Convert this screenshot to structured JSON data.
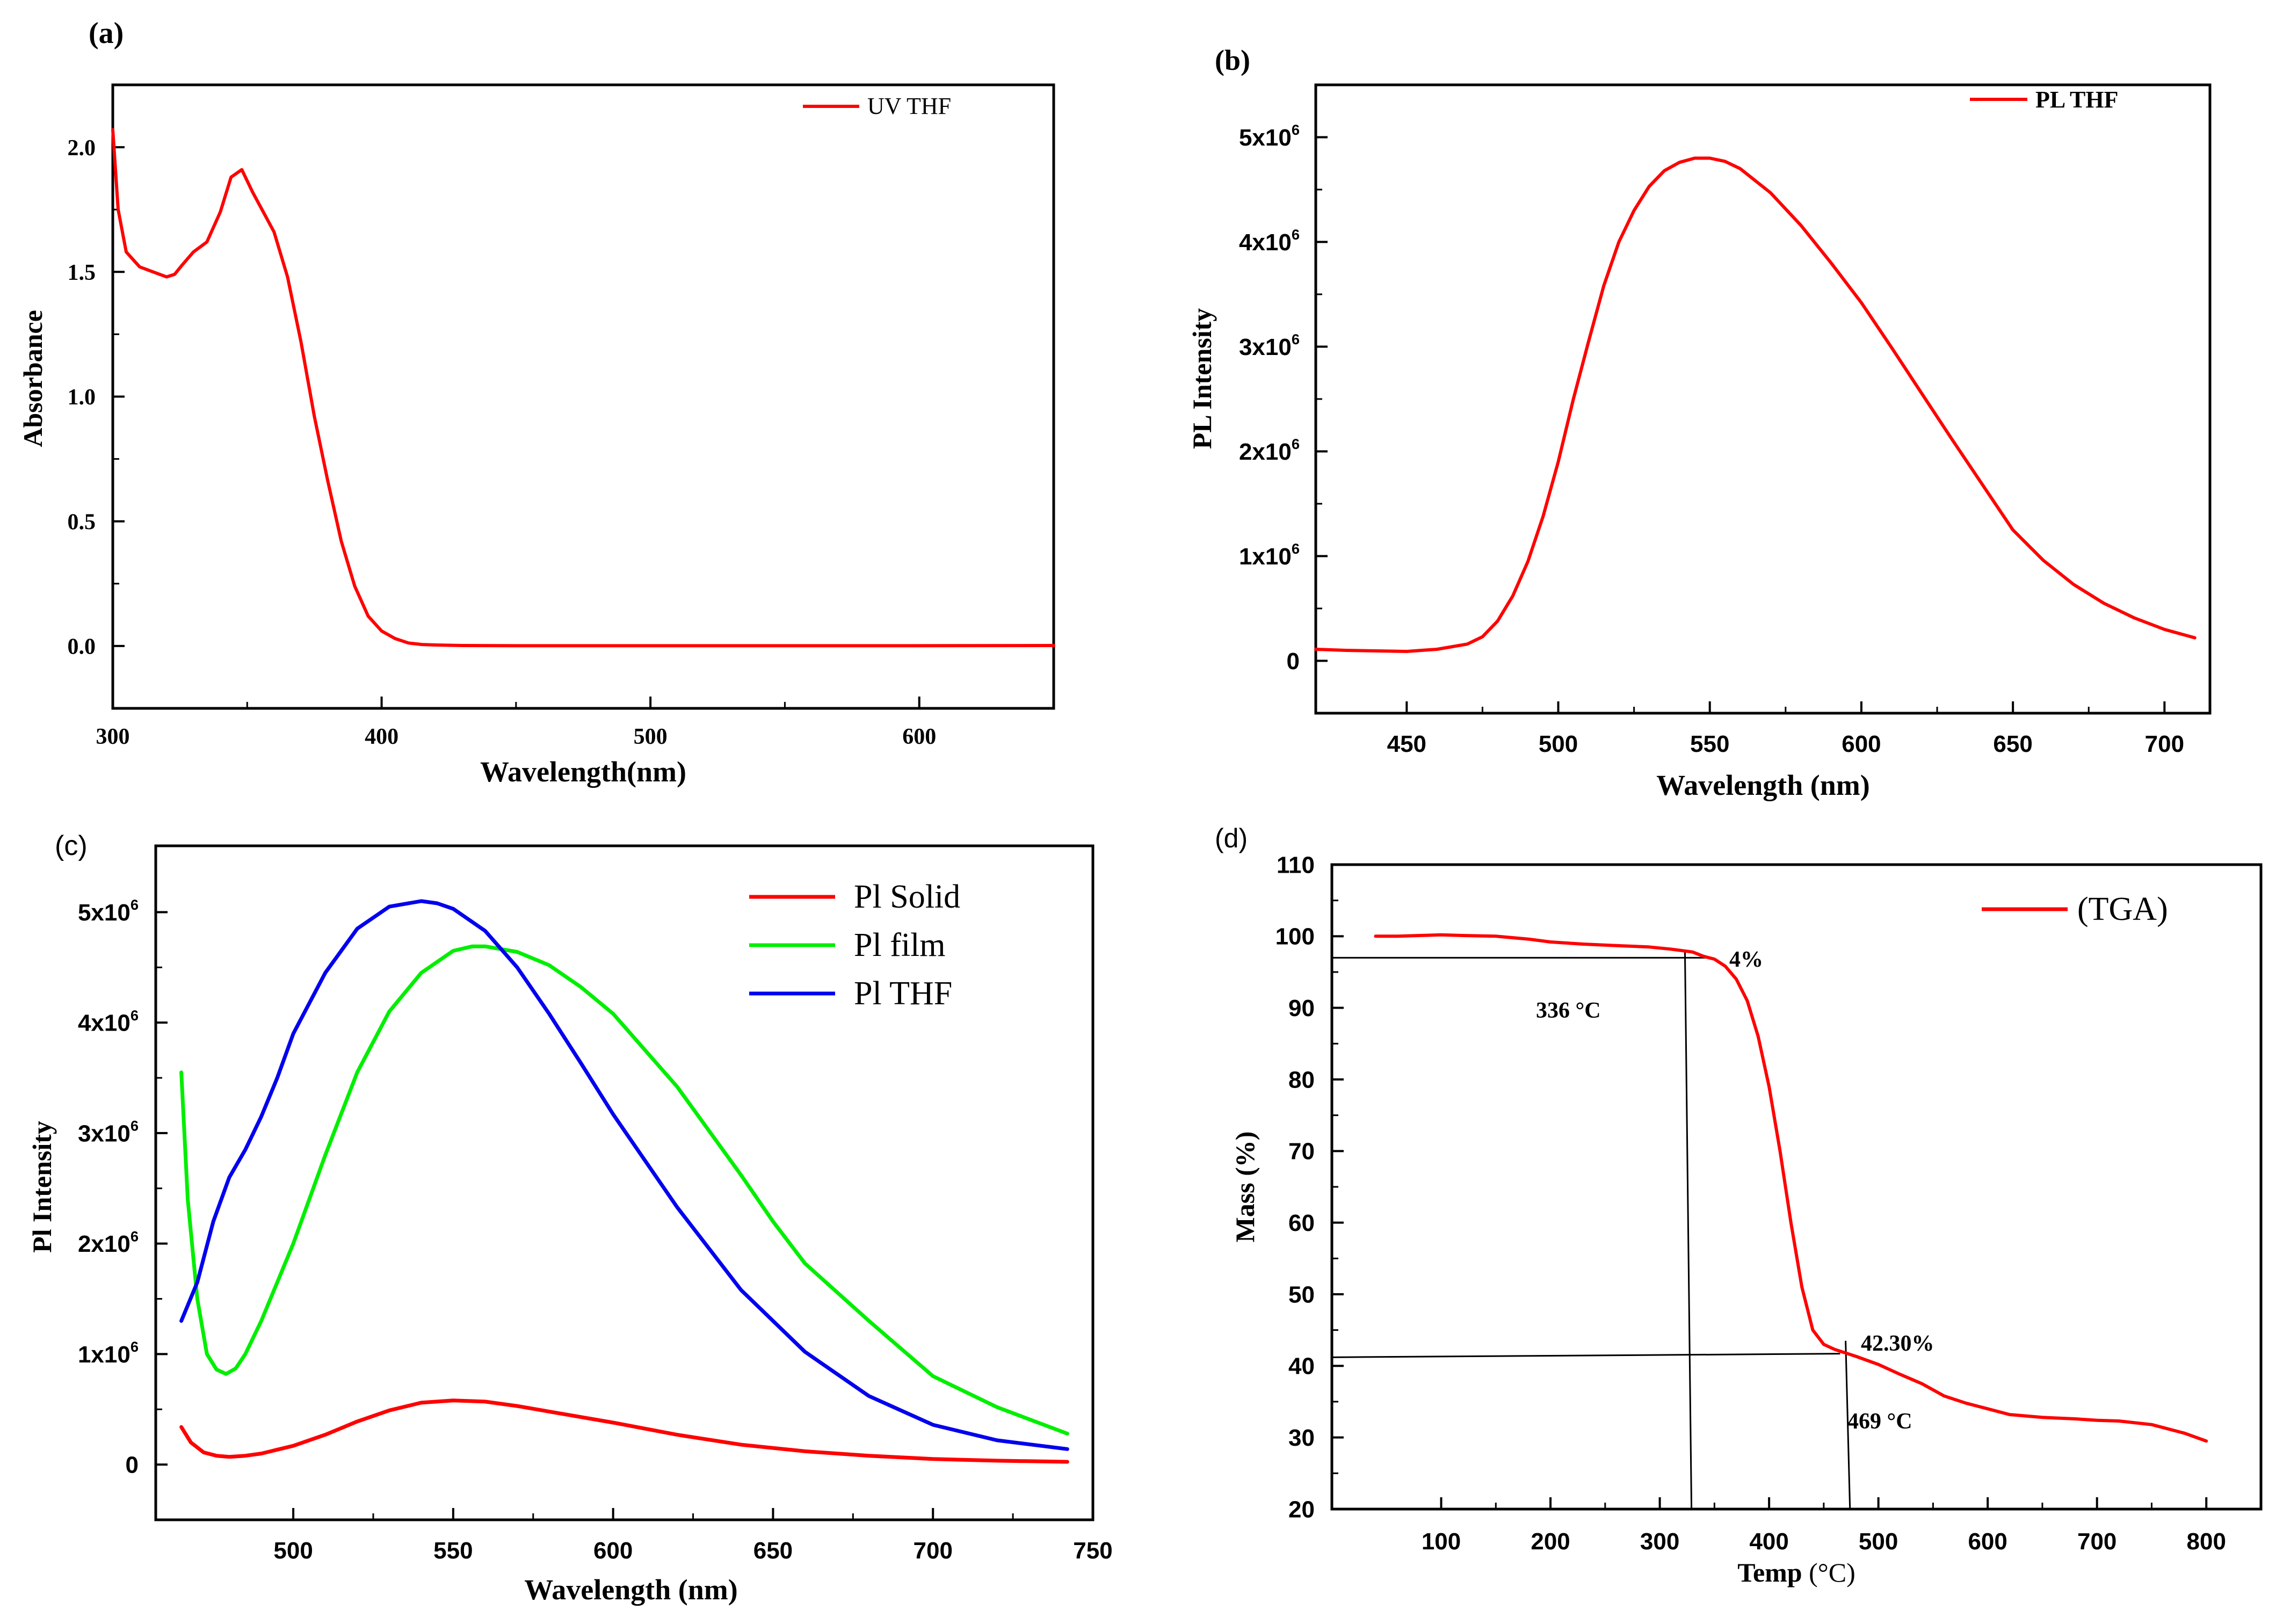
{
  "chart_data": [
    {
      "id": "a",
      "type": "line",
      "panel_label": "(a)",
      "title": "",
      "xlabel": "Wavelength(nm)",
      "ylabel": "Absorbance",
      "xlim": [
        300,
        650
      ],
      "ylim": [
        -0.25,
        2.25
      ],
      "xticks": [
        300,
        400,
        500,
        600
      ],
      "xtick_labels": [
        "300",
        "400",
        "500",
        "600"
      ],
      "yticks": [
        0.0,
        0.5,
        1.0,
        1.5,
        2.0
      ],
      "ytick_labels": [
        "0.0",
        "0.5",
        "1.0",
        "1.5",
        "2.0"
      ],
      "legend": "top-right",
      "series": [
        {
          "name": "UV THF",
          "color": "#ff0000",
          "x": [
            300,
            302,
            305,
            310,
            315,
            320,
            323,
            326,
            330,
            335,
            340,
            344,
            348,
            352,
            356,
            360,
            365,
            370,
            375,
            380,
            385,
            390,
            395,
            400,
            405,
            410,
            415,
            420,
            430,
            450,
            500,
            550,
            600,
            650
          ],
          "y": [
            2.07,
            1.75,
            1.58,
            1.52,
            1.5,
            1.48,
            1.49,
            1.53,
            1.58,
            1.62,
            1.74,
            1.88,
            1.91,
            1.82,
            1.74,
            1.66,
            1.48,
            1.22,
            0.92,
            0.66,
            0.42,
            0.24,
            0.12,
            0.06,
            0.03,
            0.012,
            0.006,
            0.004,
            0.002,
            0.001,
            0.001,
            0.001,
            0.001,
            0.002
          ]
        }
      ]
    },
    {
      "id": "b",
      "type": "line",
      "panel_label": "(b)",
      "title": "",
      "xlabel": "Wavelength (nm)",
      "ylabel": "PL Intensity",
      "xlim": [
        420,
        715
      ],
      "ylim": [
        -500000,
        5500000
      ],
      "xticks": [
        450,
        500,
        550,
        600,
        650,
        700
      ],
      "xtick_labels": [
        "450",
        "500",
        "550",
        "600",
        "650",
        "700"
      ],
      "yticks": [
        0,
        1000000,
        2000000,
        3000000,
        4000000,
        5000000
      ],
      "ytick_labels": [
        "0",
        "1x10",
        "2x10",
        "3x10",
        "4x10",
        "5x10"
      ],
      "ytick_sup": [
        "",
        "6",
        "6",
        "6",
        "6",
        "6"
      ],
      "legend": "top-right",
      "series": [
        {
          "name": "PL THF",
          "color": "#ff0000",
          "x": [
            420,
            430,
            440,
            450,
            460,
            470,
            475,
            480,
            485,
            490,
            495,
            500,
            505,
            510,
            515,
            520,
            525,
            530,
            535,
            540,
            545,
            550,
            555,
            560,
            570,
            580,
            590,
            600,
            610,
            620,
            630,
            640,
            650,
            660,
            670,
            680,
            690,
            700,
            710
          ],
          "y": [
            110000,
            100000,
            95000,
            90000,
            110000,
            160000,
            230000,
            380000,
            620000,
            950000,
            1380000,
            1900000,
            2500000,
            3050000,
            3580000,
            4000000,
            4300000,
            4530000,
            4680000,
            4760000,
            4800000,
            4800000,
            4770000,
            4700000,
            4470000,
            4160000,
            3800000,
            3420000,
            2990000,
            2550000,
            2110000,
            1680000,
            1250000,
            960000,
            730000,
            550000,
            410000,
            300000,
            220000
          ]
        }
      ]
    },
    {
      "id": "c",
      "type": "line",
      "panel_label": "(c)",
      "title": "",
      "xlabel": "Wavelength (nm)",
      "ylabel": "Pl Intensity",
      "xlim": [
        457,
        750
      ],
      "ylim": [
        -500000,
        5600000
      ],
      "xticks": [
        500,
        550,
        600,
        650,
        700,
        750
      ],
      "xtick_labels": [
        "500",
        "550",
        "600",
        "650",
        "700",
        "750"
      ],
      "yticks": [
        0,
        1000000,
        2000000,
        3000000,
        4000000,
        5000000
      ],
      "ytick_labels": [
        "0",
        "1x10",
        "2x10",
        "3x10",
        "4x10",
        "5x10"
      ],
      "ytick_sup": [
        "",
        "6",
        "6",
        "6",
        "6",
        "6"
      ],
      "legend": "top-right",
      "series": [
        {
          "name": "Pl Solid",
          "color": "#ff0000",
          "x": [
            465,
            468,
            472,
            476,
            480,
            485,
            490,
            500,
            510,
            520,
            530,
            540,
            550,
            560,
            570,
            580,
            600,
            620,
            640,
            660,
            680,
            700,
            720,
            742
          ],
          "y": [
            340000,
            200000,
            110000,
            80000,
            70000,
            80000,
            100000,
            170000,
            270000,
            390000,
            490000,
            560000,
            580000,
            570000,
            530000,
            480000,
            380000,
            270000,
            180000,
            120000,
            80000,
            50000,
            35000,
            25000
          ]
        },
        {
          "name": "Pl film",
          "color": "#00ee00",
          "x": [
            465,
            467,
            470,
            473,
            476,
            479,
            482,
            485,
            490,
            495,
            500,
            510,
            520,
            530,
            540,
            550,
            556,
            560,
            570,
            580,
            590,
            600,
            620,
            640,
            650,
            660,
            680,
            700,
            720,
            742
          ],
          "y": [
            3550000,
            2400000,
            1500000,
            1000000,
            860000,
            820000,
            870000,
            1000000,
            1300000,
            1650000,
            2000000,
            2800000,
            3550000,
            4100000,
            4450000,
            4650000,
            4690000,
            4690000,
            4640000,
            4520000,
            4320000,
            4080000,
            3420000,
            2620000,
            2200000,
            1820000,
            1300000,
            800000,
            520000,
            280000
          ]
        },
        {
          "name": "Pl THF",
          "color": "#0000ee",
          "x": [
            465,
            470,
            475,
            480,
            485,
            490,
            495,
            500,
            510,
            520,
            530,
            540,
            545,
            550,
            560,
            570,
            580,
            590,
            600,
            620,
            640,
            660,
            680,
            700,
            720,
            742
          ],
          "y": [
            1300000,
            1650000,
            2200000,
            2600000,
            2850000,
            3150000,
            3500000,
            3900000,
            4450000,
            4850000,
            5050000,
            5100000,
            5080000,
            5030000,
            4830000,
            4500000,
            4080000,
            3630000,
            3170000,
            2330000,
            1580000,
            1020000,
            620000,
            360000,
            220000,
            140000
          ]
        }
      ]
    },
    {
      "id": "d",
      "type": "line",
      "panel_label": "(d)",
      "title": "",
      "xlabel": "Temp (°C)",
      "xlabel_main": "Temp",
      "xlabel_unit": "(°C)",
      "ylabel": "Mass (%)",
      "xlim": [
        0,
        850
      ],
      "ylim": [
        20,
        110
      ],
      "xticks": [
        100,
        200,
        300,
        400,
        500,
        600,
        700,
        800
      ],
      "xtick_labels": [
        "100",
        "200",
        "300",
        "400",
        "500",
        "600",
        "700",
        "800"
      ],
      "yticks": [
        20,
        30,
        40,
        50,
        60,
        70,
        80,
        90,
        100,
        110
      ],
      "ytick_labels": [
        "20",
        "30",
        "40",
        "50",
        "60",
        "70",
        "80",
        "90",
        "100",
        "110"
      ],
      "legend": "top-right",
      "series": [
        {
          "name": "(TGA)",
          "color": "#ff0000",
          "x": [
            40,
            60,
            80,
            100,
            120,
            150,
            180,
            200,
            230,
            260,
            290,
            310,
            330,
            340,
            350,
            360,
            370,
            380,
            390,
            400,
            410,
            420,
            430,
            440,
            450,
            460,
            470,
            480,
            500,
            520,
            540,
            560,
            580,
            600,
            620,
            650,
            680,
            700,
            720,
            750,
            780,
            800
          ],
          "y": [
            100.0,
            100.0,
            100.1,
            100.2,
            100.1,
            100.0,
            99.6,
            99.2,
            98.9,
            98.7,
            98.5,
            98.2,
            97.8,
            97.2,
            96.8,
            95.8,
            94.0,
            91.0,
            86.0,
            79.0,
            70.0,
            60.0,
            51.0,
            45.0,
            43.0,
            42.3,
            41.8,
            41.3,
            40.2,
            38.8,
            37.5,
            35.8,
            34.8,
            34.0,
            33.2,
            32.8,
            32.6,
            32.4,
            32.3,
            31.8,
            30.6,
            29.5
          ]
        }
      ],
      "annotations": [
        {
          "text": "4%"
        },
        {
          "text": "336 °C"
        },
        {
          "text": "42.30%"
        },
        {
          "text": "469 °C"
        }
      ],
      "guide_lines": [
        {
          "x1": 0,
          "y1": 97.0,
          "x2": 345,
          "y2": 97.0
        },
        {
          "x1": 323,
          "y1": 98.0,
          "x2": 329,
          "y2": 20
        },
        {
          "x1": 0,
          "y1": 41.2,
          "x2": 465,
          "y2": 41.7
        },
        {
          "x1": 470,
          "y1": 43.5,
          "x2": 474,
          "y2": 20
        }
      ]
    }
  ]
}
